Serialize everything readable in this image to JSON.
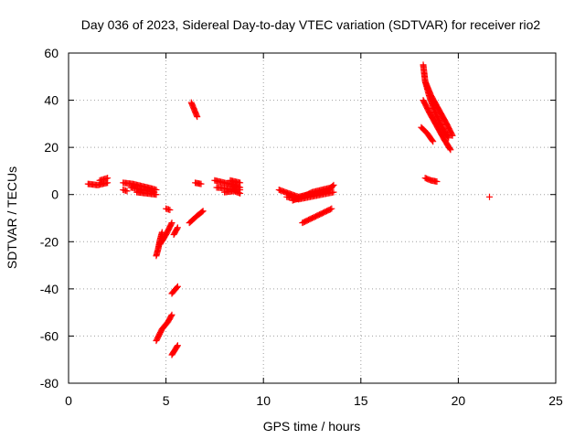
{
  "chart_data": {
    "type": "scatter",
    "title": "Day 036 of 2023, Sidereal Day-to-day VTEC variation (SDTVAR) for receiver rio2",
    "xlabel": "GPS time / hours",
    "ylabel": "SDTVAR / TECUs",
    "xlim": [
      0,
      25
    ],
    "ylim": [
      -80,
      60
    ],
    "xticks": [
      0,
      5,
      10,
      15,
      20,
      25
    ],
    "yticks": [
      -80,
      -60,
      -40,
      -20,
      0,
      20,
      40,
      60
    ],
    "xtick_labels": [
      "0",
      "5",
      "10",
      "15",
      "20",
      "25"
    ],
    "ytick_labels": [
      "-80",
      "-60",
      "-40",
      "-20",
      "0",
      "20",
      "40",
      "60"
    ],
    "grid": true,
    "marker": "+",
    "color": "#ff0000",
    "segments": [
      {
        "x": [
          1.0,
          1.5,
          2.0
        ],
        "y": [
          4.5,
          4.0,
          5.0
        ]
      },
      {
        "x": [
          1.6,
          2.0
        ],
        "y": [
          6.0,
          7.0
        ]
      },
      {
        "x": [
          2.8,
          3.3,
          3.8,
          4.3,
          4.5
        ],
        "y": [
          5.0,
          4.5,
          3.5,
          2.5,
          2.0
        ]
      },
      {
        "x": [
          3.2,
          3.8,
          4.4
        ],
        "y": [
          3.0,
          2.0,
          1.0
        ]
      },
      {
        "x": [
          3.5,
          4.0,
          4.5
        ],
        "y": [
          1.0,
          0.5,
          0.0
        ]
      },
      {
        "x": [
          2.8,
          3.0
        ],
        "y": [
          2.0,
          1.5
        ]
      },
      {
        "x": [
          5.0,
          5.2
        ],
        "y": [
          -6.0,
          -6.5
        ]
      },
      {
        "x": [
          4.5,
          4.6,
          4.7,
          4.8
        ],
        "y": [
          -26.0,
          -23.0,
          -19.0,
          -16.0
        ]
      },
      {
        "x": [
          4.7,
          5.0,
          5.3
        ],
        "y": [
          -21.0,
          -17.0,
          -12.0
        ]
      },
      {
        "x": [
          5.4,
          5.6
        ],
        "y": [
          -17.0,
          -14.0
        ]
      },
      {
        "x": [
          6.2,
          6.6,
          6.9
        ],
        "y": [
          -12.0,
          -9.0,
          -7.0
        ]
      },
      {
        "x": [
          6.3,
          6.6
        ],
        "y": [
          39.0,
          33.0
        ]
      },
      {
        "x": [
          6.5,
          6.8
        ],
        "y": [
          5.0,
          4.5
        ]
      },
      {
        "x": [
          7.5,
          8.0,
          8.5,
          8.8
        ],
        "y": [
          6.0,
          5.0,
          4.0,
          3.0
        ]
      },
      {
        "x": [
          7.6,
          8.2,
          8.8
        ],
        "y": [
          3.0,
          2.5,
          2.0
        ]
      },
      {
        "x": [
          8.0,
          8.5,
          8.8
        ],
        "y": [
          1.0,
          1.5,
          0.5
        ]
      },
      {
        "x": [
          8.3,
          8.8
        ],
        "y": [
          6.0,
          5.0
        ]
      },
      {
        "x": [
          5.3,
          5.6
        ],
        "y": [
          -42.0,
          -39.0
        ]
      },
      {
        "x": [
          4.5,
          4.8,
          5.1,
          5.3
        ],
        "y": [
          -62.0,
          -57.0,
          -54.0,
          -51.0
        ]
      },
      {
        "x": [
          5.3,
          5.6
        ],
        "y": [
          -68.0,
          -64.0
        ]
      },
      {
        "x": [
          10.8,
          11.3,
          11.8,
          12.3,
          12.8,
          13.3,
          13.6
        ],
        "y": [
          2.0,
          0.5,
          -1.0,
          0.0,
          0.5,
          1.5,
          4.0
        ]
      },
      {
        "x": [
          11.5,
          12.0,
          12.5,
          13.0,
          13.5
        ],
        "y": [
          -2.5,
          -1.0,
          1.0,
          2.0,
          3.0
        ]
      },
      {
        "x": [
          11.2,
          11.8,
          12.4,
          13.0,
          13.6
        ],
        "y": [
          -1.0,
          -2.0,
          -1.0,
          0.0,
          1.0
        ]
      },
      {
        "x": [
          12.0,
          12.5,
          13.0,
          13.5
        ],
        "y": [
          -12.0,
          -10.0,
          -8.0,
          -6.0
        ]
      },
      {
        "x": [
          18.2,
          18.3,
          18.5,
          18.8,
          19.2,
          19.5
        ],
        "y": [
          55.0,
          48.0,
          42.0,
          35.0,
          28.0,
          24.0
        ]
      },
      {
        "x": [
          18.3,
          18.6,
          19.0,
          19.4,
          19.7
        ],
        "y": [
          48.0,
          42.0,
          36.0,
          30.0,
          25.0
        ]
      },
      {
        "x": [
          18.2,
          18.5,
          18.9,
          19.3,
          19.6
        ],
        "y": [
          40.0,
          35.0,
          29.0,
          23.0,
          19.0
        ]
      },
      {
        "x": [
          18.1,
          18.4,
          18.7
        ],
        "y": [
          28.5,
          26.0,
          22.5
        ]
      },
      {
        "x": [
          18.3,
          18.6,
          18.9
        ],
        "y": [
          7.0,
          6.0,
          5.5
        ]
      },
      {
        "x": [
          21.6
        ],
        "y": [
          -1.0
        ]
      }
    ]
  }
}
